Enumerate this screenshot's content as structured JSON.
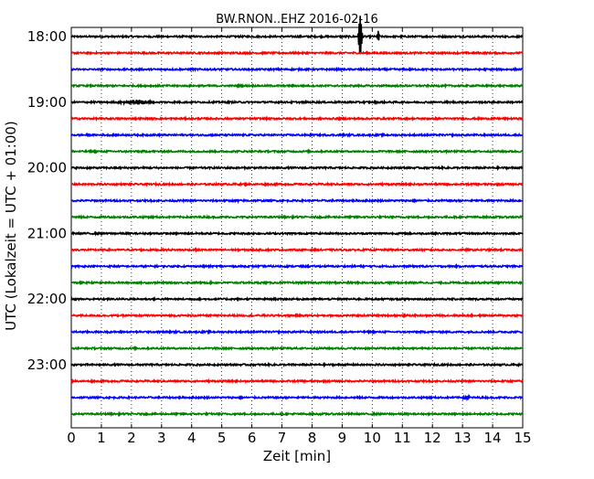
{
  "chart_data": {
    "type": "line",
    "title": "BW.RNON..EHZ 2016-02-16",
    "xlabel": "Zeit  [min]",
    "ylabel": "UTC (Lokalzeit = UTC + 01:00)",
    "xlim": [
      0,
      15
    ],
    "xticks": [
      "0",
      "1",
      "2",
      "3",
      "4",
      "5",
      "6",
      "7",
      "8",
      "9",
      "10",
      "11",
      "12",
      "13",
      "14",
      "15"
    ],
    "yticks": [
      {
        "label": "18:00",
        "row": 0
      },
      {
        "label": "19:00",
        "row": 4
      },
      {
        "label": "20:00",
        "row": 8
      },
      {
        "label": "21:00",
        "row": 12
      },
      {
        "label": "22:00",
        "row": 16
      },
      {
        "label": "23:00",
        "row": 20
      }
    ],
    "grid": {
      "x": true,
      "y": false,
      "style": "dotted"
    },
    "row_count": 24,
    "row_colors": [
      "#000000",
      "#ff0000",
      "#0000ff",
      "#008000"
    ],
    "events": [
      {
        "row": 0,
        "minute": 9.6,
        "amplitude": 2.3,
        "duration": 0.08
      },
      {
        "row": 0,
        "minute": 10.2,
        "amplitude": 0.6,
        "duration": 0.05
      },
      {
        "row": 4,
        "minute": 2.2,
        "amplitude": 0.2,
        "duration": 0.8
      },
      {
        "row": 10,
        "minute": 5.5,
        "amplitude": 0.15,
        "duration": 0.1
      },
      {
        "row": 22,
        "minute": 13.1,
        "amplitude": 0.15,
        "duration": 0.2
      }
    ]
  }
}
